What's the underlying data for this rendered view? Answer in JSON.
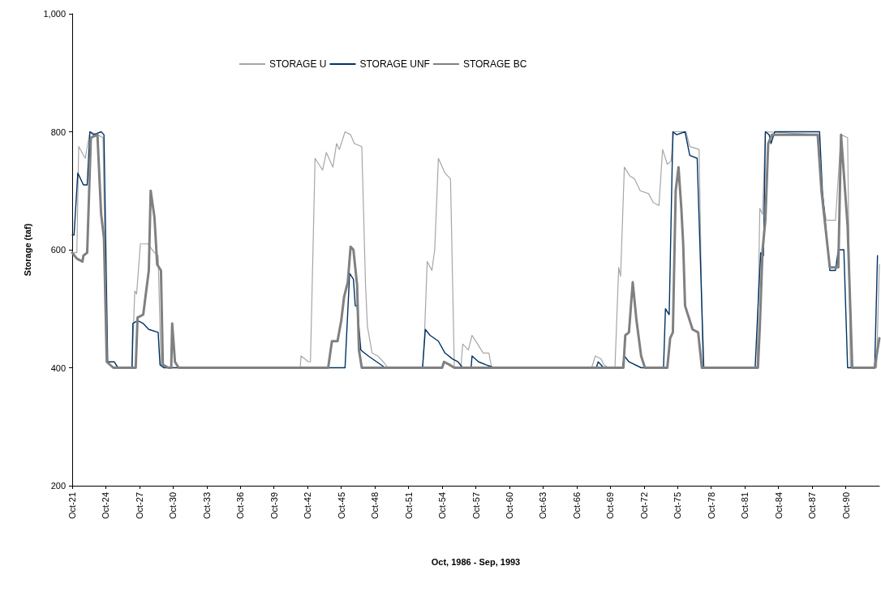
{
  "chart_data": {
    "type": "line",
    "xlabel": "Oct, 1986 - Sep, 1993",
    "ylabel": "Storage (taf)",
    "legend": "top",
    "grid": false,
    "marker": "none",
    "line_style": "solid",
    "xlim": [
      "1921-10",
      "1993-10"
    ],
    "xticks": [
      {
        "value": "1921-10",
        "label": "Oct-21"
      },
      {
        "value": "1924-10",
        "label": "Oct-24"
      },
      {
        "value": "1927-10",
        "label": "Oct-27"
      },
      {
        "value": "1930-10",
        "label": "Oct-30"
      },
      {
        "value": "1933-10",
        "label": "Oct-33"
      },
      {
        "value": "1936-10",
        "label": "Oct-36"
      },
      {
        "value": "1939-10",
        "label": "Oct-39"
      },
      {
        "value": "1942-10",
        "label": "Oct-42"
      },
      {
        "value": "1945-10",
        "label": "Oct-45"
      },
      {
        "value": "1948-10",
        "label": "Oct-48"
      },
      {
        "value": "1951-10",
        "label": "Oct-51"
      },
      {
        "value": "1954-10",
        "label": "Oct-54"
      },
      {
        "value": "1957-10",
        "label": "Oct-57"
      },
      {
        "value": "1960-10",
        "label": "Oct-60"
      },
      {
        "value": "1963-10",
        "label": "Oct-63"
      },
      {
        "value": "1966-10",
        "label": "Oct-66"
      },
      {
        "value": "1969-10",
        "label": "Oct-69"
      },
      {
        "value": "1972-10",
        "label": "Oct-72"
      },
      {
        "value": "1975-10",
        "label": "Oct-75"
      },
      {
        "value": "1978-10",
        "label": "Oct-78"
      },
      {
        "value": "1981-10",
        "label": "Oct-81"
      },
      {
        "value": "1984-10",
        "label": "Oct-84"
      },
      {
        "value": "1987-10",
        "label": "Oct-87"
      },
      {
        "value": "1990-10",
        "label": "Oct-90"
      }
    ],
    "ylim": [
      200,
      1000
    ],
    "yticks": [
      200,
      400,
      600,
      800,
      {
        "value": 1000,
        "label": "1,000"
      }
    ],
    "series": [
      {
        "name": "STORAGE U",
        "color": "#a6a6a6",
        "x": [
          "1921-10",
          "1922-03",
          "1922-05",
          "1922-12",
          "1923-05",
          "1924-01",
          "1924-07",
          "1924-11",
          "1925-06",
          "1927-02",
          "1927-05",
          "1927-07",
          "1927-11",
          "1928-07",
          "1929-02",
          "1929-06",
          "1929-09",
          "1930-02",
          "1942-02",
          "1942-03",
          "1942-11",
          "1943-01",
          "1943-06",
          "1944-02",
          "1944-06",
          "1945-01",
          "1945-05",
          "1945-08",
          "1946-02",
          "1946-08",
          "1946-12",
          "1947-08",
          "1947-12",
          "1948-02",
          "1948-07",
          "1949-01",
          "1949-07",
          "1949-12",
          "1953-01",
          "1953-03",
          "1953-06",
          "1953-11",
          "1954-02",
          "1954-06",
          "1955-01",
          "1955-07",
          "1955-11",
          "1956-06",
          "1956-08",
          "1957-02",
          "1957-06",
          "1957-12",
          "1958-06",
          "1958-12",
          "1959-03",
          "1968-02",
          "1968-06",
          "1968-12",
          "1969-03",
          "1969-08",
          "1970-03",
          "1970-07",
          "1970-09",
          "1971-01",
          "1971-07",
          "1971-12",
          "1972-06",
          "1973-03",
          "1973-08",
          "1974-02",
          "1974-06",
          "1974-11",
          "1975-03",
          "1975-06",
          "1976-07",
          "1976-11",
          "1977-09",
          "1978-01",
          "1982-11",
          "1983-02",
          "1983-05",
          "1983-08",
          "1988-05",
          "1988-08",
          "1989-01",
          "1989-11",
          "1990-05",
          "1990-12",
          "1991-03",
          "1993-07",
          "1993-10"
        ],
        "values": [
          595,
          595,
          775,
          755,
          800,
          795,
          790,
          410,
          400,
          400,
          530,
          525,
          610,
          610,
          595,
          590,
          405,
          400,
          400,
          420,
          410,
          410,
          755,
          735,
          765,
          740,
          780,
          770,
          800,
          795,
          780,
          775,
          540,
          470,
          425,
          420,
          410,
          400,
          400,
          450,
          580,
          565,
          600,
          755,
          730,
          720,
          400,
          400,
          440,
          430,
          455,
          440,
          425,
          425,
          400,
          400,
          420,
          415,
          405,
          400,
          400,
          570,
          555,
          740,
          725,
          720,
          700,
          695,
          680,
          675,
          770,
          745,
          750,
          800,
          800,
          775,
          770,
          400,
          400,
          670,
          660,
          800,
          795,
          700,
          650,
          650,
          795,
          790,
          400,
          400,
          575
        ]
      },
      {
        "name": "STORAGE UNF",
        "color": "#003366",
        "x": [
          "1921-10",
          "1921-12",
          "1922-04",
          "1922-10",
          "1923-02",
          "1923-05",
          "1923-09",
          "1924-05",
          "1924-08",
          "1924-12",
          "1925-07",
          "1925-11",
          "1927-02",
          "1927-03",
          "1927-08",
          "1928-02",
          "1928-08",
          "1929-06",
          "1929-08",
          "1929-12",
          "1930-07",
          "1946-02",
          "1946-07",
          "1946-11",
          "1947-01",
          "1947-03",
          "1947-07",
          "1948-03",
          "1948-12",
          "1949-09",
          "1953-01",
          "1953-04",
          "1953-09",
          "1954-06",
          "1955-01",
          "1955-09",
          "1956-03",
          "1956-08",
          "1957-05",
          "1957-06",
          "1958-01",
          "1958-09",
          "1959-06",
          "1968-07",
          "1968-09",
          "1969-03",
          "1970-11",
          "1971-01",
          "1971-06",
          "1972-07",
          "1974-07",
          "1974-09",
          "1975-01",
          "1975-05",
          "1975-09",
          "1976-06",
          "1976-11",
          "1977-07",
          "1978-02",
          "1982-09",
          "1982-12",
          "1983-03",
          "1983-06",
          "1983-08",
          "1983-12",
          "1984-02",
          "1984-06",
          "1988-06",
          "1988-09",
          "1989-05",
          "1989-11",
          "1990-02",
          "1990-08",
          "1990-12",
          "1993-05",
          "1993-08"
        ],
        "values": [
          625,
          625,
          730,
          710,
          710,
          800,
          795,
          800,
          795,
          410,
          410,
          400,
          400,
          475,
          480,
          475,
          465,
          460,
          405,
          400,
          400,
          400,
          560,
          550,
          505,
          505,
          430,
          420,
          410,
          400,
          400,
          465,
          455,
          445,
          425,
          415,
          410,
          400,
          400,
          420,
          410,
          405,
          400,
          400,
          410,
          400,
          400,
          420,
          410,
          400,
          400,
          500,
          490,
          800,
          795,
          800,
          760,
          755,
          400,
          400,
          500,
          595,
          590,
          800,
          795,
          780,
          800,
          800,
          700,
          565,
          565,
          600,
          600,
          400,
          400,
          590
        ]
      },
      {
        "name": "STORAGE BC",
        "color": "#808080",
        "x": [
          "1921-10",
          "1922-03",
          "1922-09",
          "1922-10",
          "1923-02",
          "1923-06",
          "1924-01",
          "1924-05",
          "1924-08",
          "1924-11",
          "1925-06",
          "1927-06",
          "1927-08",
          "1928-02",
          "1928-08",
          "1928-10",
          "1929-02",
          "1929-05",
          "1929-09",
          "1929-11",
          "1930-05",
          "1930-08",
          "1930-09",
          "1930-12",
          "1931-04",
          "1944-08",
          "1944-12",
          "1945-06",
          "1945-10",
          "1946-01",
          "1946-05",
          "1946-08",
          "1946-11",
          "1947-03",
          "1947-05",
          "1947-08",
          "1954-10",
          "1954-12",
          "1955-06",
          "1955-11",
          "1970-12",
          "1971-02",
          "1971-06",
          "1971-10",
          "1972-02",
          "1972-07",
          "1972-11",
          "1974-11",
          "1975-02",
          "1975-05",
          "1975-08",
          "1975-11",
          "1976-02",
          "1976-04",
          "1976-06",
          "1977-02",
          "1977-08",
          "1977-12",
          "1982-12",
          "1983-02",
          "1983-05",
          "1983-08",
          "1983-11",
          "1984-03",
          "1988-04",
          "1988-08",
          "1989-05",
          "1990-02",
          "1990-05",
          "1990-12",
          "1991-05",
          "1993-05",
          "1993-10"
        ],
        "values": [
          595,
          585,
          580,
          590,
          595,
          790,
          795,
          660,
          620,
          410,
          400,
          400,
          485,
          490,
          565,
          700,
          655,
          575,
          565,
          405,
          400,
          400,
          475,
          410,
          400,
          400,
          445,
          445,
          480,
          520,
          545,
          605,
          600,
          540,
          430,
          400,
          400,
          410,
          405,
          400,
          400,
          455,
          460,
          545,
          480,
          420,
          400,
          400,
          450,
          460,
          700,
          740,
          670,
          610,
          505,
          465,
          460,
          400,
          400,
          470,
          600,
          650,
          780,
          795,
          795,
          700,
          570,
          570,
          795,
          640,
          400,
          400,
          450
        ]
      }
    ]
  }
}
